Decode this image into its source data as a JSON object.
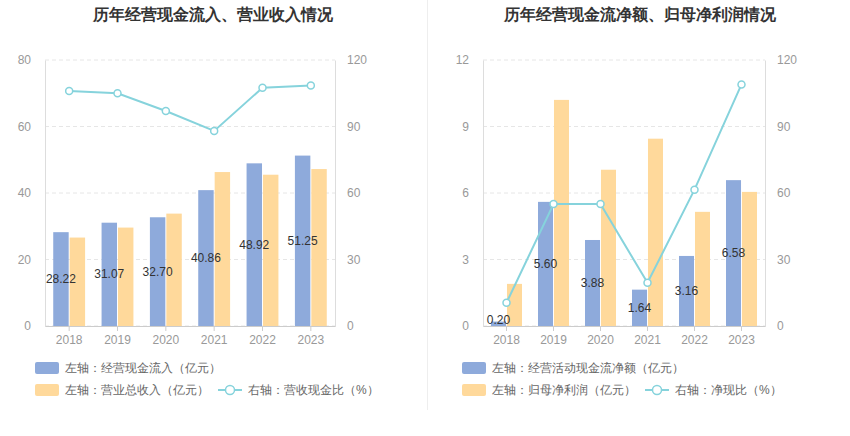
{
  "chart_data": [
    {
      "type": "bar",
      "title": "历年经营现金流入、营业收入情况",
      "categories": [
        "2018",
        "2019",
        "2020",
        "2021",
        "2022",
        "2023"
      ],
      "ylim": [
        0,
        80
      ],
      "yticks": [
        0,
        20,
        40,
        60,
        80
      ],
      "y2lim": [
        0,
        120
      ],
      "y2ticks": [
        0,
        30,
        60,
        90,
        120
      ],
      "grid": true,
      "legend": "bottom",
      "series": [
        {
          "name": "左轴：经营现金流入（亿元）",
          "type": "bar",
          "color": "#8eaadb",
          "values": [
            28.22,
            31.07,
            32.7,
            40.86,
            48.92,
            51.25
          ],
          "value_labels": [
            "28.22",
            "31.07",
            "32.70",
            "40.86",
            "48.92",
            "51.25"
          ],
          "data_labels": true
        },
        {
          "name": "左轴：营业总收入（亿元）",
          "type": "bar",
          "color": "#ffd99b",
          "values": [
            26.6,
            29.6,
            33.8,
            46.3,
            45.5,
            47.2
          ]
        },
        {
          "name": "右轴：营收现金比（%）",
          "type": "line",
          "axis": "y2",
          "color": "#86d3dc",
          "marker": "circle",
          "values": [
            106,
            105,
            97,
            88,
            107.5,
            108.5
          ]
        }
      ]
    },
    {
      "type": "bar",
      "title": "历年经营现金流净额、归母净利润情况",
      "categories": [
        "2018",
        "2019",
        "2020",
        "2021",
        "2022",
        "2023"
      ],
      "ylim": [
        0,
        12
      ],
      "yticks": [
        0,
        3,
        6,
        9,
        12
      ],
      "y2lim": [
        0,
        120
      ],
      "y2ticks": [
        0,
        30,
        60,
        90,
        120
      ],
      "grid": true,
      "legend": "bottom",
      "series": [
        {
          "name": "左轴：经营活动现金流净额（亿元）",
          "type": "bar",
          "color": "#8eaadb",
          "values": [
            0.2,
            5.6,
            3.88,
            1.64,
            3.16,
            6.58
          ],
          "value_labels": [
            "0.20",
            "5.60",
            "3.88",
            "1.64",
            "3.16",
            "6.58"
          ],
          "data_labels": true
        },
        {
          "name": "左轴：归母净利润（亿元）",
          "type": "bar",
          "color": "#ffd99b",
          "values": [
            1.9,
            10.2,
            7.05,
            8.45,
            5.15,
            6.05
          ]
        },
        {
          "name": "右轴：净现比（%）",
          "type": "line",
          "axis": "y2",
          "color": "#86d3dc",
          "marker": "circle",
          "values": [
            10.5,
            55,
            55,
            19.5,
            61.5,
            109
          ]
        }
      ]
    }
  ]
}
